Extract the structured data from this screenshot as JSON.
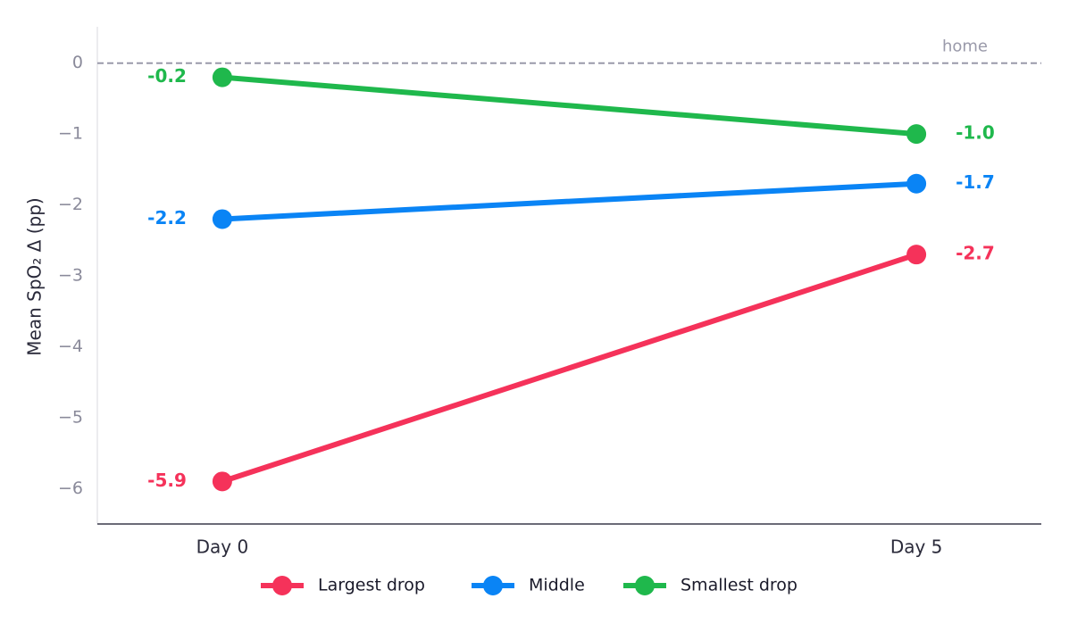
{
  "chart_data": {
    "type": "slope",
    "y_label": "Mean SpO₂ Δ (pp)",
    "categories": [
      "Day 0",
      "Day 5"
    ],
    "series": [
      {
        "name": "Largest drop",
        "color": "#f5325a",
        "values": [
          -5.9,
          -2.7
        ],
        "value_labels": [
          "-5.9",
          "-2.7"
        ]
      },
      {
        "name": "Middle",
        "color": "#0a84f5",
        "values": [
          -2.2,
          -1.7
        ],
        "value_labels": [
          "-2.2",
          "-1.7"
        ]
      },
      {
        "name": "Smallest drop",
        "color": "#1fb84c",
        "values": [
          -0.2,
          -1.0
        ],
        "value_labels": [
          "-0.2",
          "-1.0"
        ]
      }
    ],
    "ylim": [
      -6.5,
      0.5
    ],
    "yticks": [
      0,
      {
        "value": -1,
        "label": "−1"
      },
      {
        "value": -2,
        "label": "−2"
      },
      {
        "value": -3,
        "label": "−3"
      },
      {
        "value": -4,
        "label": "−4"
      },
      {
        "value": -5,
        "label": "−5"
      },
      {
        "value": -6,
        "label": "−6"
      }
    ],
    "reference_line": {
      "value": 0,
      "label": "home"
    },
    "grid": false,
    "legend": "bottom"
  }
}
